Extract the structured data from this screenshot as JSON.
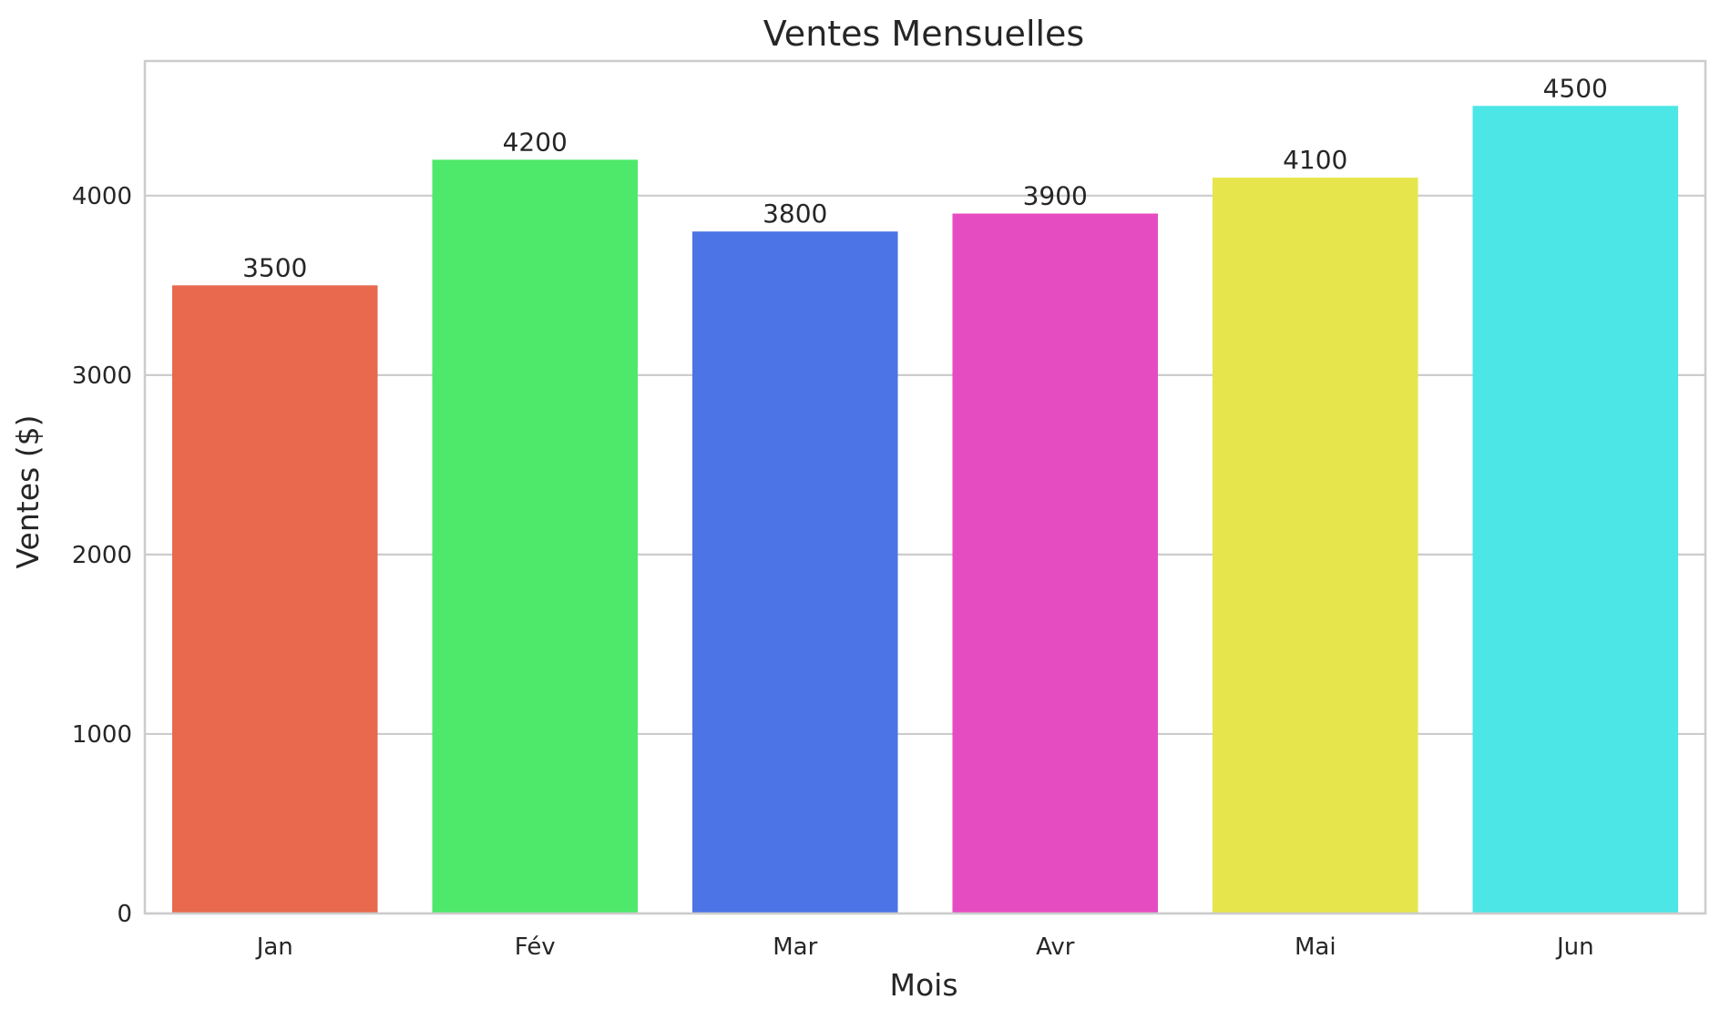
{
  "chart_data": {
    "type": "bar",
    "title": "Ventes Mensuelles",
    "xlabel": "Mois",
    "ylabel": "Ventes ($)",
    "categories": [
      "Jan",
      "Fév",
      "Mar",
      "Avr",
      "Mai",
      "Jun"
    ],
    "values": [
      3500,
      4200,
      3800,
      3900,
      4100,
      4500
    ],
    "data_labels": [
      "3500",
      "4200",
      "3800",
      "3900",
      "4100",
      "4500"
    ],
    "colors": [
      "#e8694e",
      "#4ee96b",
      "#4c74e6",
      "#e64cc1",
      "#e6e64c",
      "#4ce6e6"
    ],
    "ylim": [
      0,
      4750
    ],
    "yticks": [
      0,
      1000,
      2000,
      3000,
      4000
    ],
    "ytick_labels": [
      "0",
      "1000",
      "2000",
      "3000",
      "4000"
    ],
    "grid": true,
    "grid_axis": "y",
    "grid_color": "#cccccc",
    "frame_color": "#cccccc",
    "legend": "none"
  }
}
